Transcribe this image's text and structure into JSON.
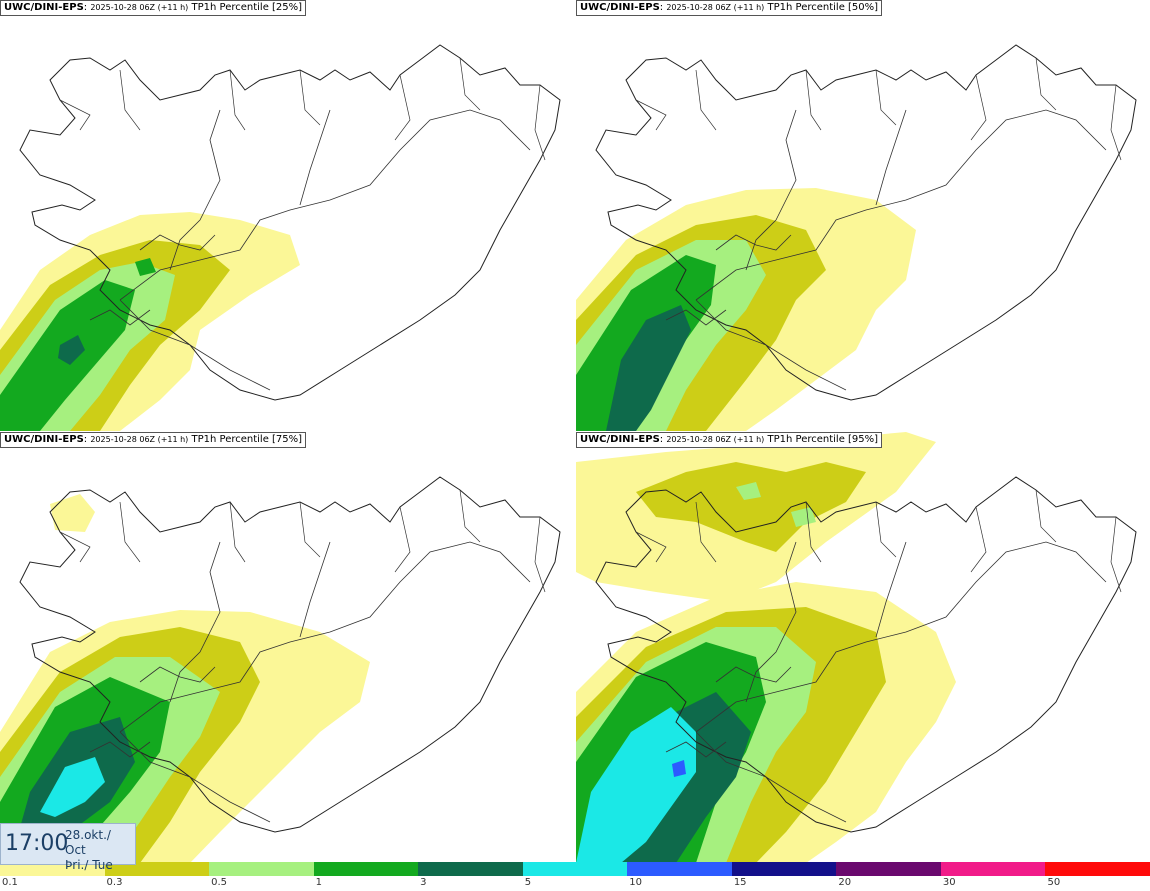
{
  "panels": [
    {
      "model": "UWC/DINI-EPS",
      "run": "2025-10-28 06Z (+11 h)",
      "field": "TP1h Percentile [25%]"
    },
    {
      "model": "UWC/DINI-EPS",
      "run": "2025-10-28 06Z (+11 h)",
      "field": "TP1h Percentile [50%]"
    },
    {
      "model": "UWC/DINI-EPS",
      "run": "2025-10-28 06Z (+11 h)",
      "field": "TP1h Percentile [75%]"
    },
    {
      "model": "UWC/DINI-EPS",
      "run": "2025-10-28 06Z (+11 h)",
      "field": "TP1h Percentile [95%]"
    }
  ],
  "valid_time": {
    "time": "17:00",
    "date_line1": "28.okt./ Oct",
    "date_line2": "Þri./ Tue"
  },
  "legend": {
    "colors": [
      "#fbf797",
      "#cdce17",
      "#a6f07f",
      "#13a91f",
      "#0e6a4b",
      "#1be8e6",
      "#2c5bff",
      "#13108a",
      "#6a086e",
      "#f11b89",
      "#ff0a0a"
    ],
    "labels": [
      "0.1",
      "0.3",
      "0.5",
      "1",
      "3",
      "5",
      "10",
      "15",
      "20",
      "30",
      "50"
    ]
  }
}
